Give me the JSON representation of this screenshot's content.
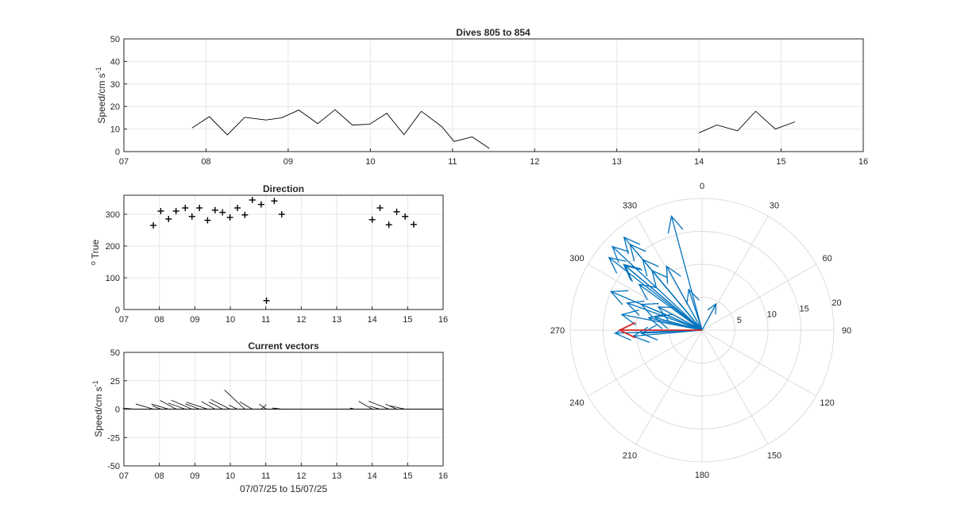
{
  "colors": {
    "background": "#ffffff",
    "axis": "#262626",
    "grid": "#e6e6e6",
    "line": "#000000",
    "vector": "#0072bd",
    "mean_vector": "#d62728"
  },
  "chart_data": [
    {
      "type": "line",
      "title": "Dives 805 to 854",
      "ylabel": "Speed/cm s",
      "ylabel_exp": "-1",
      "xlim": [
        7,
        16
      ],
      "ylim": [
        0,
        50
      ],
      "xticks": [
        "07",
        "08",
        "09",
        "10",
        "11",
        "12",
        "13",
        "14",
        "15",
        "16"
      ],
      "yticks": [
        "0",
        "10",
        "20",
        "30",
        "40",
        "50"
      ],
      "grid": true,
      "series": [
        {
          "x": [
            7.83,
            8.04,
            8.26,
            8.47,
            8.73,
            8.92,
            9.13,
            9.36,
            9.57,
            9.78,
            9.99,
            10.2,
            10.41,
            10.62,
            10.87,
            11.02,
            11.24,
            11.45
          ],
          "y": [
            10.5,
            15.5,
            7.4,
            15.2,
            14.0,
            15.0,
            18.4,
            12.4,
            18.6,
            11.8,
            12.1,
            17.0,
            7.5,
            17.9,
            11.1,
            4.5,
            6.5,
            1.4
          ]
        },
        {
          "x": [
            14.0,
            14.22,
            14.47,
            14.69,
            14.93,
            15.17
          ],
          "y": [
            8.3,
            11.8,
            9.2,
            17.9,
            10.0,
            13.2
          ]
        }
      ]
    },
    {
      "type": "scatter",
      "title": "Direction",
      "ylabel": "True",
      "ylabel_prefix": "o",
      "xlim": [
        7,
        16
      ],
      "ylim": [
        0,
        360
      ],
      "xticks": [
        "07",
        "08",
        "09",
        "10",
        "11",
        "12",
        "13",
        "14",
        "15",
        "16"
      ],
      "yticks": [
        "0",
        "100",
        "200",
        "300"
      ],
      "grid": true,
      "marker": "+",
      "x": [
        7.83,
        8.04,
        8.26,
        8.47,
        8.73,
        8.92,
        9.13,
        9.36,
        9.57,
        9.78,
        9.99,
        10.2,
        10.41,
        10.62,
        10.87,
        11.02,
        11.24,
        11.45,
        14.0,
        14.22,
        14.47,
        14.69,
        14.93,
        15.17
      ],
      "y": [
        265,
        310,
        285,
        310,
        320,
        293,
        320,
        281,
        313,
        306,
        290,
        320,
        298,
        345,
        331,
        28,
        342,
        300,
        283,
        320,
        267,
        308,
        293,
        268
      ]
    },
    {
      "type": "vector",
      "title": "Current vectors",
      "ylabel": "Speed/cm s",
      "ylabel_exp": "-1",
      "xlabel": "07/07/25 to 15/07/25",
      "xlim": [
        7,
        16
      ],
      "ylim": [
        -50,
        50
      ],
      "xticks": [
        "07",
        "08",
        "09",
        "10",
        "11",
        "12",
        "13",
        "14",
        "15",
        "16"
      ],
      "yticks": [
        "-50",
        "-25",
        "0",
        "25",
        "50"
      ],
      "grid": true,
      "x": [
        7.3,
        7.83,
        8.04,
        8.26,
        8.47,
        8.73,
        8.92,
        9.13,
        9.36,
        9.57,
        9.78,
        9.99,
        10.2,
        10.41,
        10.62,
        10.87,
        11.02,
        11.24,
        11.45,
        13.5,
        14.0,
        14.22,
        14.47,
        14.69,
        14.93
      ],
      "u": [
        -10.5,
        -15.5,
        -7.4,
        -15.2,
        -14.0,
        -15.0,
        -18.4,
        -12.4,
        -18.6,
        -11.8,
        -12.1,
        -17.0,
        -7.5,
        -17.9,
        -11.1,
        4.5,
        -6.5,
        -1.4,
        -8.3,
        -4.0,
        -11.8,
        -9.2,
        -17.9,
        -10.0,
        -13.2
      ],
      "v": [
        0.9,
        4.5,
        3.0,
        4.5,
        7.7,
        5.3,
        8.0,
        4.7,
        6.1,
        6.6,
        6.3,
        8.6,
        3.5,
        16.8,
        6.5,
        4.0,
        4.4,
        0.2,
        1.0,
        1.0,
        6.8,
        2.6,
        7.0,
        4.5,
        2.9
      ]
    },
    {
      "type": "polar-compass",
      "angle_labels": [
        "0",
        "30",
        "60",
        "90",
        "120",
        "150",
        "180",
        "210",
        "240",
        "270",
        "300",
        "330"
      ],
      "radius_labels": [
        "5",
        "10",
        "15",
        "20"
      ],
      "rmax": 20,
      "vectors_deg": [
        265,
        310,
        285,
        310,
        320,
        293,
        320,
        281,
        313,
        306,
        290,
        320,
        298,
        345,
        331,
        28,
        342,
        300,
        283,
        320,
        267,
        308,
        293,
        268
      ],
      "vectors_speed": [
        10.5,
        15.5,
        7.4,
        15.2,
        14.0,
        15.0,
        18.4,
        12.4,
        18.6,
        11.8,
        12.1,
        17.0,
        7.5,
        17.9,
        11.1,
        4.5,
        6.5,
        1.4,
        8.3,
        11.8,
        9.2,
        17.9,
        10.0,
        13.2
      ],
      "mean_vector": {
        "deg": 270,
        "speed": 12.5
      }
    }
  ]
}
